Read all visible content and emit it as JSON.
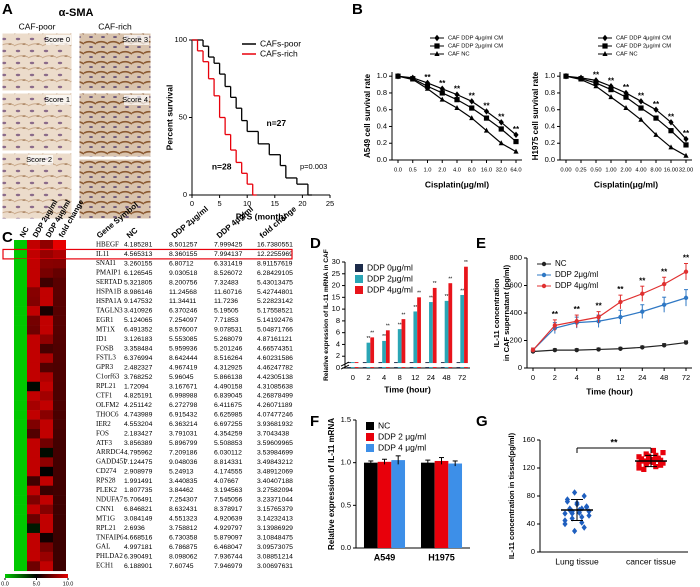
{
  "panel_labels": [
    "A",
    "B",
    "C",
    "D",
    "E",
    "F",
    "G"
  ],
  "micrographs": {
    "title": "α-SMA",
    "groups": [
      "CAF-poor",
      "CAF-rich"
    ],
    "scores": [
      "Score 0",
      "Score 1",
      "Score 2",
      "Score 3",
      "Score 4"
    ]
  },
  "chart_data": [
    {
      "type": "km",
      "y_label": "Percent survival",
      "x_label": "PFS (month)",
      "xlim": [
        0,
        25
      ],
      "xticks": [
        0,
        5,
        10,
        15,
        20,
        25
      ],
      "ylim": [
        0,
        100
      ],
      "yticks": [
        0,
        50,
        100
      ],
      "legend": "upper right",
      "series": [
        {
          "name": "CAFs-poor",
          "color": "#000000",
          "n_label": "n=27",
          "x": [
            0,
            2,
            3,
            4,
            5,
            6,
            7,
            8,
            9,
            10,
            12,
            14,
            16,
            17,
            19,
            21
          ],
          "values": [
            100,
            96,
            89,
            85,
            78,
            70,
            63,
            56,
            48,
            41,
            33,
            26,
            19,
            11,
            7,
            0
          ]
        },
        {
          "name": "CAFs-rich",
          "color": "#e8000b",
          "n_label": "n=28",
          "x": [
            0,
            1,
            2,
            3,
            4,
            5,
            6,
            7,
            8,
            9,
            10,
            11
          ],
          "values": [
            100,
            93,
            86,
            75,
            64,
            50,
            39,
            29,
            21,
            14,
            7,
            0
          ]
        }
      ],
      "p_value": "p=0.003"
    },
    {
      "type": "line",
      "y_label": "A549 cell survival rate",
      "x_label": "Cisplatin(μg/ml)",
      "categories": [
        "0.0",
        "0.5",
        "1.0",
        "2.0",
        "4.0",
        "8.0",
        "16.0",
        "32.0",
        "64.0"
      ],
      "ylim": [
        0,
        1.05
      ],
      "yticks": [
        {
          "value": 0,
          "label": "0.0"
        },
        0.2,
        0.4,
        0.6,
        0.8,
        {
          "value": 1,
          "label": "1.0"
        }
      ],
      "legend": "top",
      "annotations": [
        null,
        null,
        "**",
        "**",
        "**",
        "**",
        "**",
        "**",
        "**"
      ],
      "series": [
        {
          "name": "CAF DDP 4μg/ml CM",
          "color": "#000000",
          "marker": "diamond",
          "values": [
            1,
            0.98,
            0.92,
            0.85,
            0.78,
            0.7,
            0.58,
            0.45,
            0.3
          ]
        },
        {
          "name": "CAF DDP 2μg/ml CM",
          "color": "#000000",
          "marker": "square",
          "values": [
            1,
            0.97,
            0.88,
            0.8,
            0.72,
            0.62,
            0.5,
            0.37,
            0.22
          ]
        },
        {
          "name": "CAF NC",
          "color": "#000000",
          "marker": "triangle",
          "values": [
            1,
            0.96,
            0.85,
            0.72,
            0.62,
            0.5,
            0.35,
            0.2,
            0.1
          ]
        }
      ]
    },
    {
      "type": "line",
      "y_label": "H1975 cell survival rate",
      "x_label": "Cisplatin(μg/ml)",
      "categories": [
        "0.00",
        "0.25",
        "0.50",
        "1.00",
        "2.00",
        "4.00",
        "8.00",
        "16.00",
        "32.00"
      ],
      "ylim": [
        0,
        1.05
      ],
      "yticks": [
        {
          "value": 0,
          "label": "0.0"
        },
        0.2,
        0.4,
        0.6,
        0.8,
        {
          "value": 1,
          "label": "1.0"
        }
      ],
      "legend": "top",
      "annotations": [
        null,
        null,
        "**",
        "**",
        "**",
        "**",
        "**",
        "**",
        "**"
      ],
      "series": [
        {
          "name": "CAF DDP 4μg/ml CM",
          "color": "#000000",
          "marker": "diamond",
          "values": [
            1,
            0.98,
            0.95,
            0.88,
            0.8,
            0.7,
            0.6,
            0.45,
            0.25
          ]
        },
        {
          "name": "CAF DDP 2μg/ml CM",
          "color": "#000000",
          "marker": "square",
          "values": [
            1,
            0.97,
            0.92,
            0.84,
            0.75,
            0.62,
            0.5,
            0.35,
            0.18
          ]
        },
        {
          "name": "CAF NC",
          "color": "#000000",
          "marker": "triangle",
          "values": [
            1,
            0.96,
            0.88,
            0.75,
            0.62,
            0.48,
            0.3,
            0.15,
            0.05
          ]
        }
      ]
    },
    {
      "type": "heatmap",
      "columns": [
        "NC",
        "DDP 2μg/ml",
        "DDP 4μg/ml",
        "fold change"
      ],
      "row_header": "Gene Symbol",
      "highlight": "IL11",
      "highlight_color": "#e8000b",
      "colorbar_lim": [
        0,
        10
      ],
      "colorbar_ticks": [
        {
          "value": 0,
          "label": "0.0"
        },
        {
          "value": 5,
          "label": "5.0"
        },
        {
          "value": 10,
          "label": "10.0"
        }
      ],
      "rows": [
        {
          "gene": "HBEGF",
          "values": [
            4.185281,
            8.501257,
            7.999425,
            16.7380551
          ]
        },
        {
          "gene": "IL11",
          "values": [
            4.565313,
            8.360155,
            7.994137,
            12.2255969
          ]
        },
        {
          "gene": "SNAI1",
          "values": [
            3.260155,
            6.80712,
            6.331419,
            8.91157619
          ]
        },
        {
          "gene": "PMAIP1",
          "values": [
            6.126545,
            9.030518,
            8.526072,
            6.28429105
          ]
        },
        {
          "gene": "SERTAD",
          "values": [
            5.321805,
            8.200756,
            7.32483,
            5.43013475
          ]
        },
        {
          "gene": "HSPA1B",
          "values": [
            8.986146,
            11.24568,
            11.60716,
            5.42744801
          ]
        },
        {
          "gene": "HSPA1A",
          "values": [
            9.147532,
            11.34411,
            11.7236,
            5.22823142
          ]
        },
        {
          "gene": "TAGLN3",
          "values": [
            3.410926,
            6.370246,
            5.19505,
            5.17558521
          ]
        },
        {
          "gene": "EGR1",
          "values": [
            5.124065,
            7.254097,
            7.71853,
            5.14192476
          ]
        },
        {
          "gene": "MT1X",
          "values": [
            6.491352,
            8.576007,
            9.078531,
            5.04871766
          ]
        },
        {
          "gene": "ID1",
          "values": [
            3.126183,
            5.553085,
            5.268079,
            4.87161121
          ]
        },
        {
          "gene": "FOSB",
          "values": [
            3.358484,
            5.959936,
            5.201246,
            4.66574351
          ]
        },
        {
          "gene": "FSTL3",
          "values": [
            6.376994,
            8.642444,
            8.516264,
            4.60231586
          ]
        },
        {
          "gene": "GPR3",
          "values": [
            2.482327,
            4.967419,
            4.312925,
            4.46247782
          ]
        },
        {
          "gene": "C1orf63",
          "values": [
            3.768252,
            5.96045,
            5.866138,
            4.42305138
          ]
        },
        {
          "gene": "RPL21",
          "values": [
            1.72094,
            3.167671,
            4.490158,
            4.31085638
          ]
        },
        {
          "gene": "CTF1",
          "values": [
            4.825191,
            6.998988,
            6.839045,
            4.26878499
          ]
        },
        {
          "gene": "OLFM2",
          "values": [
            4.251142,
            6.272798,
            6.411675,
            4.26071189
          ]
        },
        {
          "gene": "THOC6",
          "values": [
            4.743989,
            6.915432,
            6.625985,
            4.07477246
          ]
        },
        {
          "gene": "IER2",
          "values": [
            4.553204,
            6.363214,
            6.697255,
            3.93681932
          ]
        },
        {
          "gene": "FOS",
          "values": [
            2.183427,
            3.791031,
            4.354259,
            3.7043438
          ]
        },
        {
          "gene": "ATF3",
          "values": [
            3.856389,
            5.896799,
            5.508853,
            3.59609965
          ]
        },
        {
          "gene": "ARRDC4",
          "values": [
            4.795962,
            7.209186,
            6.030112,
            3.53984699
          ]
        },
        {
          "gene": "GADD45I",
          "values": [
            7.124475,
            9.048036,
            8.814331,
            3.49843212
          ]
        },
        {
          "gene": "CD274",
          "values": [
            2.908979,
            5.24913,
            4.174555,
            3.48912069
          ]
        },
        {
          "gene": "RPS28",
          "values": [
            1.991491,
            3.440835,
            4.07667,
            3.40407188
          ]
        },
        {
          "gene": "PLEK2",
          "values": [
            1.807735,
            3.84462,
            3.194563,
            3.27582094
          ]
        },
        {
          "gene": "NDUFA7",
          "values": [
            5.706491,
            7.254307,
            7.545056,
            3.23371044
          ]
        },
        {
          "gene": "CNN1",
          "values": [
            6.846821,
            8.632431,
            8.378917,
            3.15765379
          ]
        },
        {
          "gene": "MT1G",
          "values": [
            3.084149,
            4.551323,
            4.920639,
            3.14232413
          ]
        },
        {
          "gene": "RPL21",
          "values": [
            2.6936,
            3.758812,
            4.929797,
            3.13986929
          ]
        },
        {
          "gene": "TNFAIP6",
          "values": [
            4.668516,
            6.730358,
            5.879097,
            3.10848475
          ]
        },
        {
          "gene": "GAL",
          "values": [
            4.997181,
            6.786875,
            6.468047,
            3.09573075
          ]
        },
        {
          "gene": "PHLDA2",
          "values": [
            6.390491,
            8.098062,
            7.936744,
            3.08851214
          ]
        },
        {
          "gene": "ECH1",
          "values": [
            6.188901,
            7.60745,
            7.946979,
            3.00697631
          ]
        }
      ]
    },
    {
      "type": "bar",
      "y_label": "Relative expression of IL-11 mRNA in CAF",
      "x_label": "Time (hour)",
      "categories": [
        "0",
        "2",
        "4",
        "8",
        "12",
        "24",
        "48",
        "72"
      ],
      "y_scale": "broken",
      "ylim": [
        0,
        30
      ],
      "yticks": [
        0,
        2,
        4,
        6,
        8,
        10,
        15,
        20,
        25,
        30
      ],
      "legend": "upper left",
      "series": [
        {
          "name": "DDP 0μg/ml",
          "color": "#1c2b4a",
          "values": [
            1,
            1,
            1,
            1,
            1,
            1,
            1,
            1
          ]
        },
        {
          "name": "DDP 2μg/ml",
          "color": "#2aa5b5",
          "values": [
            1,
            4.3,
            4.6,
            6.6,
            9.6,
            13,
            13.5,
            16
          ],
          "annotations": [
            null,
            "**",
            "**",
            "**",
            "**",
            "**",
            "**",
            "**"
          ]
        },
        {
          "name": "DDP 4μg/ml",
          "color": "#e8141b",
          "values": [
            1,
            5.2,
            6.4,
            8.3,
            15,
            19,
            21,
            28
          ],
          "annotations": [
            null,
            "**",
            "**",
            "**",
            "**",
            "**",
            "**",
            "**"
          ]
        }
      ]
    },
    {
      "type": "line",
      "y_label": [
        "IL-11 concentration",
        "in CAF supernatant (pg/ml)"
      ],
      "x_label": "Time (hour)",
      "categories": [
        "0",
        "2",
        "4",
        "8",
        "12",
        "24",
        "48",
        "72"
      ],
      "ylim": [
        0,
        800
      ],
      "yticks": [
        0,
        200,
        400,
        600,
        800
      ],
      "legend": "upper left",
      "annotations": [
        null,
        "**",
        "**",
        "**",
        "**",
        "**",
        "**",
        "**"
      ],
      "series": [
        {
          "name": "NC",
          "color": "#222222",
          "marker": "circle",
          "values": [
            120,
            130,
            130,
            135,
            140,
            150,
            165,
            185
          ],
          "errors": [
            10,
            10,
            10,
            10,
            10,
            10,
            12,
            12
          ]
        },
        {
          "name": "DDP 2μg/ml",
          "color": "#2f78c4",
          "marker": "circle",
          "values": [
            130,
            290,
            330,
            340,
            370,
            410,
            460,
            510
          ],
          "errors": [
            15,
            40,
            40,
            45,
            50,
            50,
            55,
            60
          ]
        },
        {
          "name": "DDP 4μg/ml",
          "color": "#e03030",
          "marker": "circle",
          "values": [
            130,
            310,
            340,
            370,
            480,
            540,
            610,
            700
          ],
          "errors": [
            15,
            40,
            45,
            40,
            50,
            55,
            50,
            60
          ]
        }
      ]
    },
    {
      "type": "bar",
      "y_label": "Relative expression of IL-11 mRNA",
      "categories": [
        "A549",
        "H1975"
      ],
      "ylim": [
        0,
        1.5
      ],
      "yticks": [
        {
          "value": 0,
          "label": "0.0"
        },
        0.5,
        {
          "value": 1,
          "label": "1.0"
        },
        1.5
      ],
      "legend": "upper left",
      "series": [
        {
          "name": "NC",
          "color": "#000000",
          "values": [
            1,
            1
          ],
          "errors": [
            0.02,
            0.03
          ]
        },
        {
          "name": "DDP 2 μg/ml",
          "color": "#e8000b",
          "values": [
            1.01,
            1.02
          ],
          "errors": [
            0.03,
            0.04
          ]
        },
        {
          "name": "DDP 4 μg/ml",
          "color": "#3d8fe8",
          "values": [
            1.03,
            0.99
          ],
          "errors": [
            0.05,
            0.03
          ]
        }
      ]
    },
    {
      "type": "dot",
      "y_label": "IL-11 concentration in tissue(pg/ml)",
      "categories": [
        "Lung tissue",
        "cancer tissue"
      ],
      "ylim": [
        0,
        160
      ],
      "yticks": [
        0,
        40,
        80,
        120,
        160
      ],
      "annotation": "**",
      "groups": [
        {
          "color": "#1f5fbf",
          "marker": "diamond",
          "mean": 60,
          "sd": 15,
          "values": [
            45,
            50,
            55,
            58,
            60,
            62,
            65,
            70,
            75,
            80,
            85,
            40,
            42,
            48,
            52,
            56,
            60,
            64,
            68,
            72,
            35,
            30,
            55,
            62,
            58
          ]
        },
        {
          "color": "#e8000b",
          "marker": "square",
          "mean": 130,
          "sd": 8,
          "values": [
            120,
            122,
            125,
            127,
            128,
            130,
            131,
            132,
            133,
            134,
            135,
            136,
            138,
            140,
            142,
            145,
            118,
            124,
            129,
            130,
            132,
            137,
            126,
            133,
            128
          ]
        }
      ]
    }
  ]
}
